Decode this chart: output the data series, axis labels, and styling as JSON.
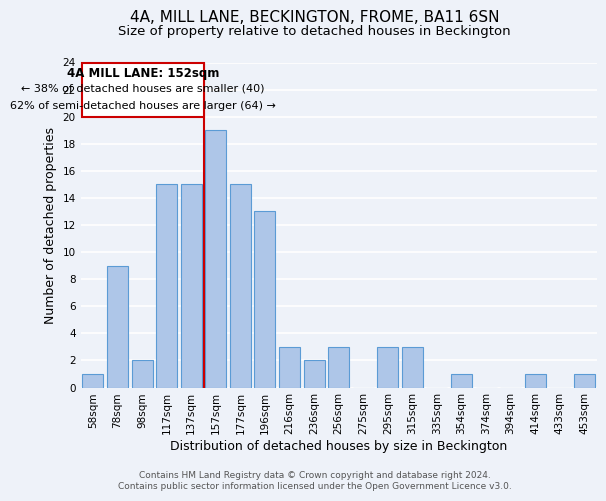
{
  "title": "4A, MILL LANE, BECKINGTON, FROME, BA11 6SN",
  "subtitle": "Size of property relative to detached houses in Beckington",
  "xlabel": "Distribution of detached houses by size in Beckington",
  "ylabel": "Number of detached properties",
  "bar_labels": [
    "58sqm",
    "78sqm",
    "98sqm",
    "117sqm",
    "137sqm",
    "157sqm",
    "177sqm",
    "196sqm",
    "216sqm",
    "236sqm",
    "256sqm",
    "275sqm",
    "295sqm",
    "315sqm",
    "335sqm",
    "354sqm",
    "374sqm",
    "394sqm",
    "414sqm",
    "433sqm",
    "453sqm"
  ],
  "bar_values": [
    1,
    9,
    2,
    15,
    15,
    19,
    15,
    13,
    3,
    2,
    3,
    0,
    3,
    3,
    0,
    1,
    0,
    0,
    1,
    0,
    1
  ],
  "bar_color": "#aec6e8",
  "bar_edge_color": "#5b9bd5",
  "vline_x_index": 5,
  "vline_color": "#cc0000",
  "ylim": [
    0,
    24
  ],
  "yticks": [
    0,
    2,
    4,
    6,
    8,
    10,
    12,
    14,
    16,
    18,
    20,
    22,
    24
  ],
  "annotation_title": "4A MILL LANE: 152sqm",
  "annotation_line1": "← 38% of detached houses are smaller (40)",
  "annotation_line2": "62% of semi-detached houses are larger (64) →",
  "annotation_box_color": "#ffffff",
  "annotation_box_edge": "#cc0000",
  "footer1": "Contains HM Land Registry data © Crown copyright and database right 2024.",
  "footer2": "Contains public sector information licensed under the Open Government Licence v3.0.",
  "background_color": "#eef2f9",
  "grid_color": "#ffffff",
  "title_fontsize": 11,
  "subtitle_fontsize": 9.5,
  "axis_label_fontsize": 9,
  "tick_fontsize": 7.5,
  "footer_fontsize": 6.5,
  "annotation_title_fontsize": 8.5,
  "annotation_text_fontsize": 8
}
